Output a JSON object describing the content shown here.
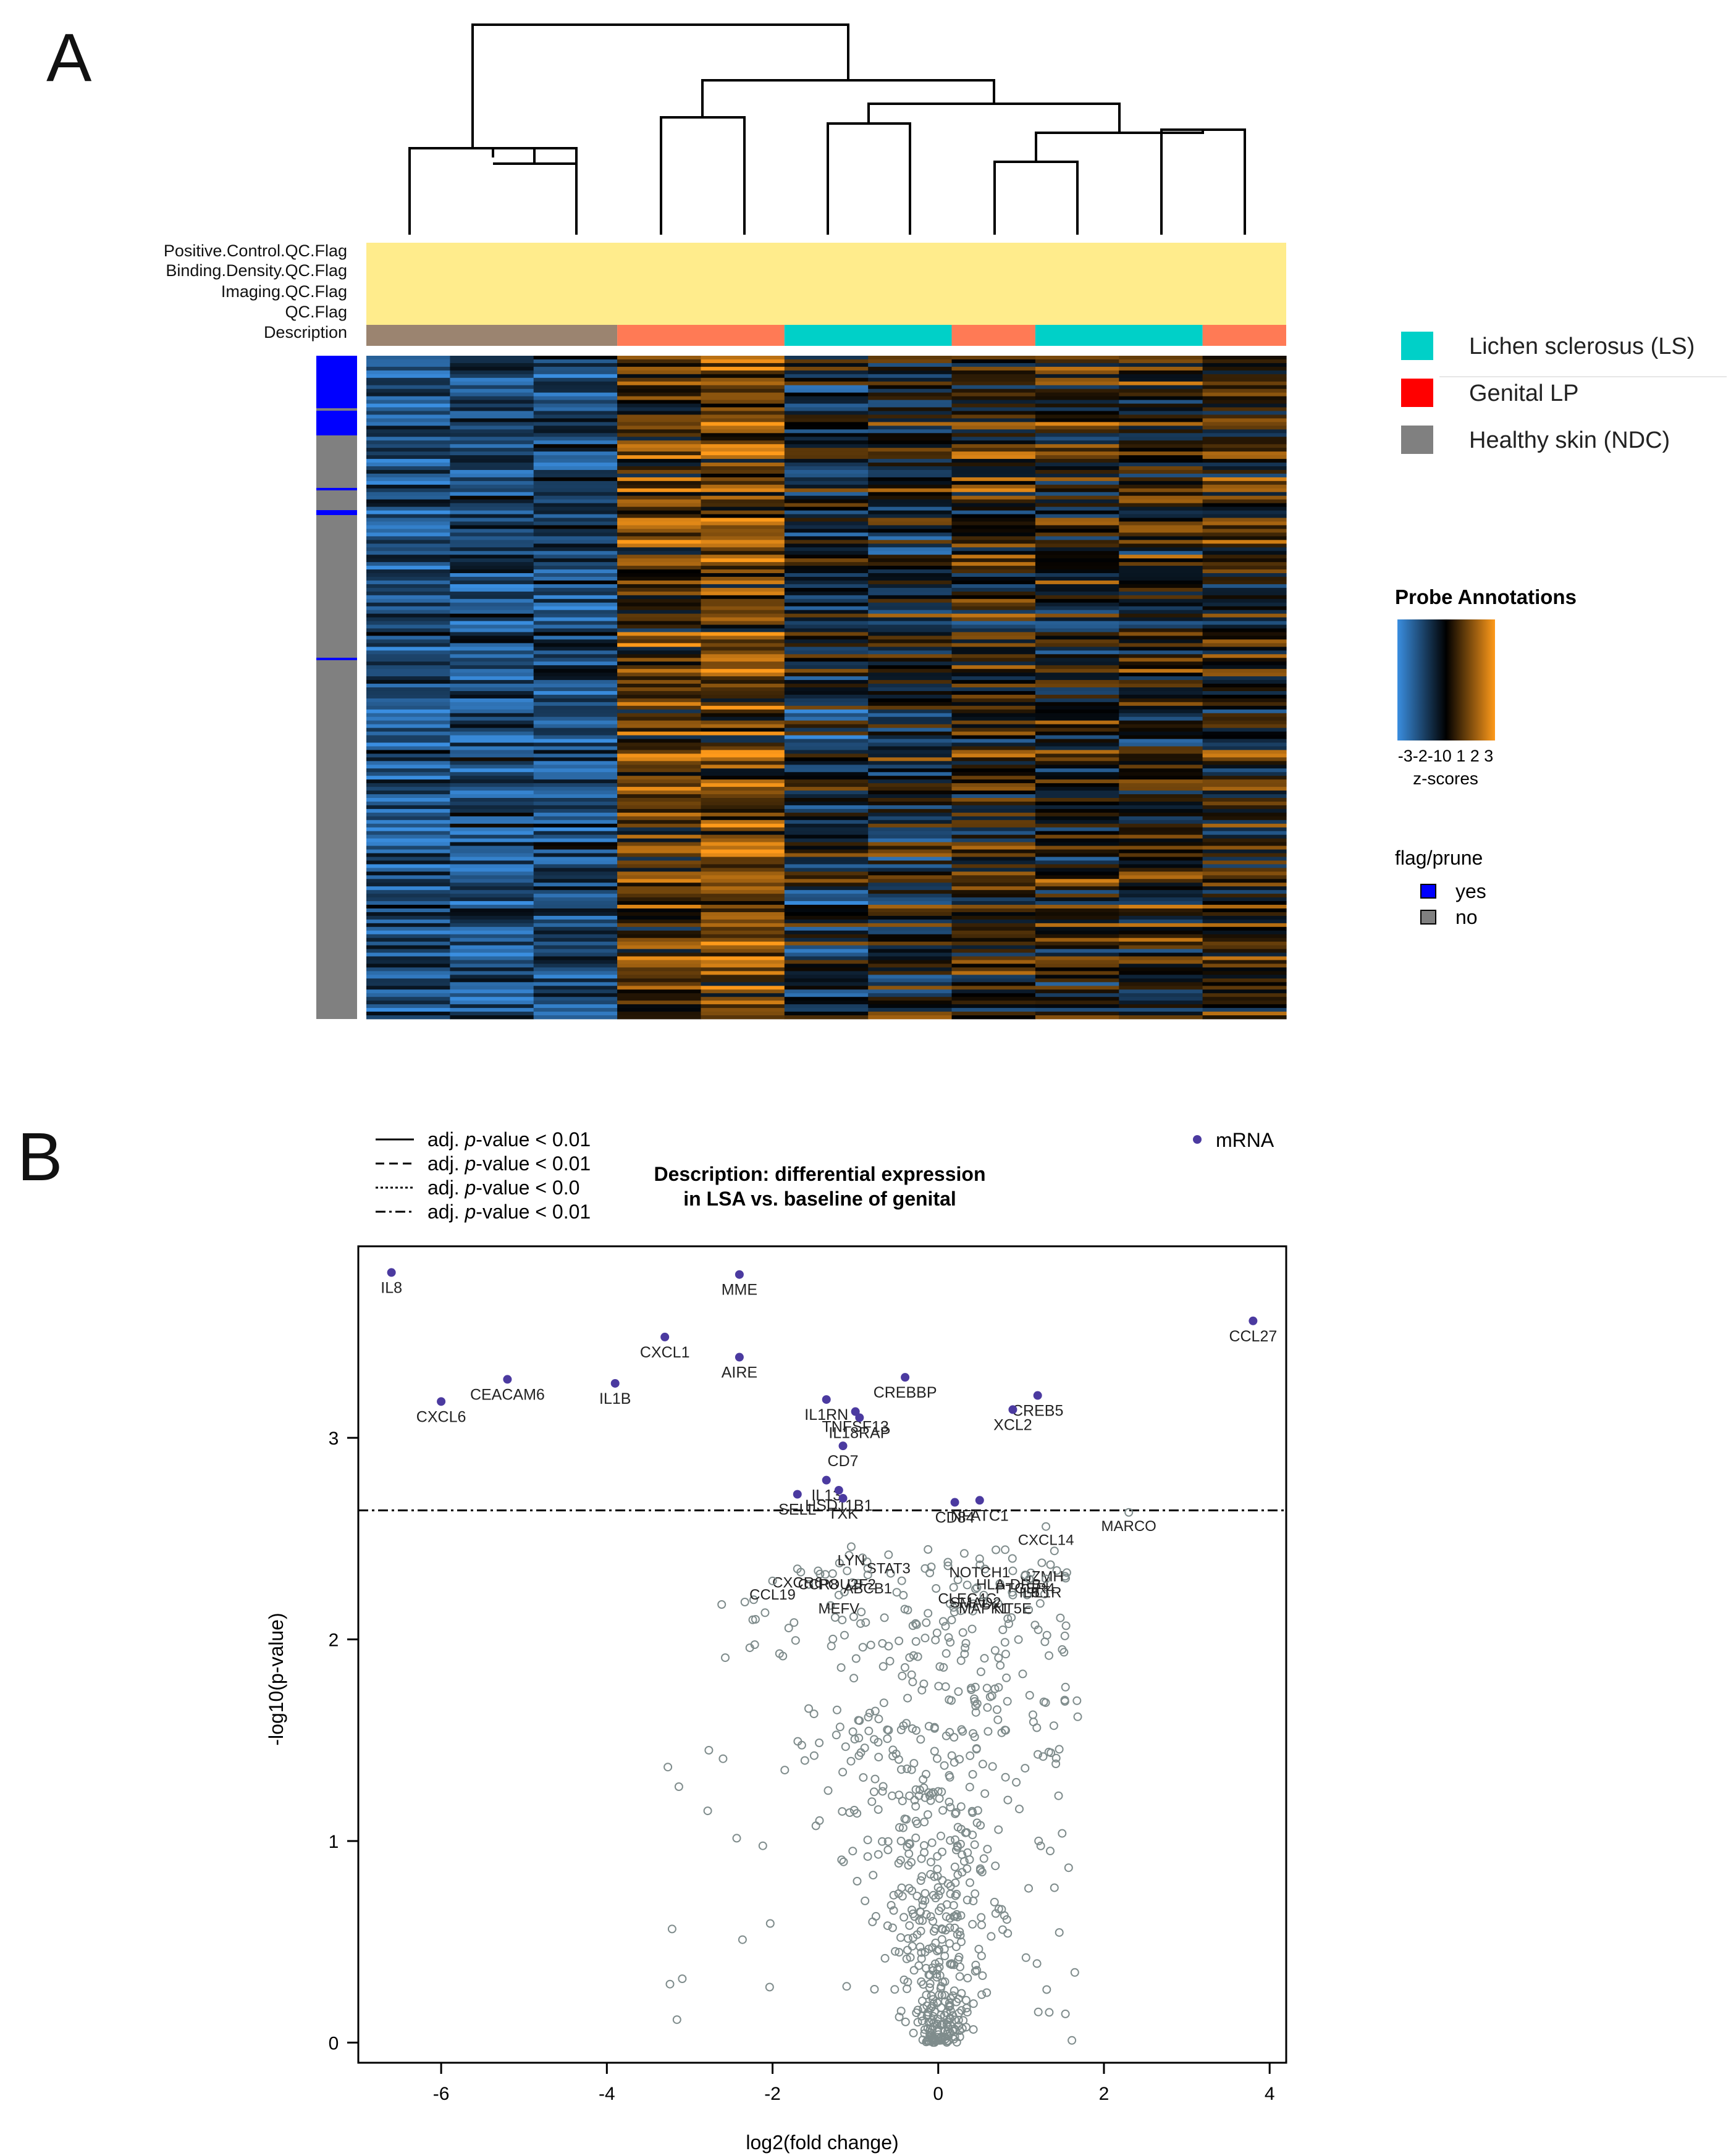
{
  "panel_labels": {
    "a": "A",
    "b": "B"
  },
  "heatmap": {
    "annotation_rows": [
      "Positive.Control.QC.Flag",
      "Binding.Density.QC.Flag",
      "Imaging.QC.Flag",
      "QC.Flag",
      "Description"
    ],
    "description_bands": [
      {
        "group": "ndc",
        "columns": 3
      },
      {
        "group": "lp",
        "columns": 2
      },
      {
        "group": "ls",
        "columns": 2
      },
      {
        "group": "lp",
        "columns": 1
      },
      {
        "group": "ls",
        "columns": 2
      },
      {
        "group": "lp",
        "columns": 1
      }
    ],
    "columns": 11,
    "legend": {
      "groups": [
        {
          "key": "ls",
          "label": "Lichen sclerosus (LS)",
          "color": "#00d0c8"
        },
        {
          "key": "lp",
          "label": "Genital LP",
          "color": "#ff0000"
        },
        {
          "key": "ndc",
          "label": "Healthy skin (NDC)",
          "color": "#808080"
        }
      ],
      "probe_title": "Probe Annotations",
      "scale_ticks": "-3-2-10 1 2 3",
      "scale_label": "z-scores",
      "flag_title": "flag/prune",
      "flag_items": [
        {
          "label": "yes",
          "color": "#0000ff"
        },
        {
          "label": "no",
          "color": "#808080"
        }
      ]
    },
    "colors": {
      "qc_band": "#ffec8c",
      "ndc_band": "#9b8470",
      "lp_band": "#ff7a55",
      "ls_band": "#00d0c8",
      "low": "#3a8ee0",
      "mid": "#000000",
      "high": "#ff9a1a"
    }
  },
  "volcano_legend": {
    "lines": [
      {
        "style": "solid",
        "prefix": "adj. ",
        "pv": "p",
        "suffix": "-value < 0.01"
      },
      {
        "style": "dashed",
        "prefix": "adj. ",
        "pv": "p",
        "suffix": "-value < 0.01"
      },
      {
        "style": "dotted",
        "prefix": "adj. ",
        "pv": "p",
        "suffix": "-value < 0.0"
      },
      {
        "style": "dashdot",
        "prefix": "adj. ",
        "pv": "p",
        "suffix": "-value < 0.01"
      }
    ],
    "point_legend": "mRNA",
    "title_line1": "Description: differential expression",
    "title_line2": "in LSA vs. baseline of genital"
  },
  "chart_data": {
    "type": "scatter",
    "title": "Description: differential expression in LSA vs. baseline of genital",
    "xlabel": "log2(fold change)",
    "ylabel": "-log10(p-value)",
    "xlim": [
      -7,
      4.2
    ],
    "ylim": [
      -0.1,
      3.95
    ],
    "xticks": [
      -6,
      -4,
      -2,
      0,
      2,
      4
    ],
    "yticks": [
      0,
      1,
      2,
      3
    ],
    "threshold_y": 2.64,
    "threshold_style": "dashdot",
    "significant_color": "#4b3aa0",
    "background_color": "#7f8c8c",
    "significant": [
      {
        "label": "IL8",
        "x": -6.6,
        "y": 3.82
      },
      {
        "label": "MME",
        "x": -2.4,
        "y": 3.81
      },
      {
        "label": "CCL27",
        "x": 3.8,
        "y": 3.58
      },
      {
        "label": "CXCL1",
        "x": -3.3,
        "y": 3.5
      },
      {
        "label": "AIRE",
        "x": -2.4,
        "y": 3.4
      },
      {
        "label": "CEACAM6",
        "x": -5.2,
        "y": 3.29
      },
      {
        "label": "IL1B",
        "x": -3.9,
        "y": 3.27
      },
      {
        "label": "CREBBP",
        "x": -0.4,
        "y": 3.3
      },
      {
        "label": "CXCL6",
        "x": -6.0,
        "y": 3.18
      },
      {
        "label": "CREB5",
        "x": 1.2,
        "y": 3.21
      },
      {
        "label": "XCL2",
        "x": 0.9,
        "y": 3.14
      },
      {
        "label": "IL1RN",
        "x": -1.35,
        "y": 3.19
      },
      {
        "label": "TNFSF13",
        "x": -1.0,
        "y": 3.13
      },
      {
        "label": "IL18RAP",
        "x": -0.95,
        "y": 3.1
      },
      {
        "label": "CD7",
        "x": -1.15,
        "y": 2.96
      },
      {
        "label": "IL13",
        "x": -1.35,
        "y": 2.79
      },
      {
        "label": "HSD11B1",
        "x": -1.2,
        "y": 2.74
      },
      {
        "label": "SELL",
        "x": -1.7,
        "y": 2.72
      },
      {
        "label": "TXK",
        "x": -1.15,
        "y": 2.7
      },
      {
        "label": "CD84",
        "x": 0.2,
        "y": 2.68
      },
      {
        "label": "NFATC1",
        "x": 0.5,
        "y": 2.69
      }
    ],
    "labeled_background": [
      {
        "label": "MARCO",
        "x": 2.3,
        "y": 2.63
      },
      {
        "label": "CXCL14",
        "x": 1.3,
        "y": 2.56
      },
      {
        "label": "LYN",
        "x": -1.05,
        "y": 2.46
      },
      {
        "label": "STAT3",
        "x": -0.6,
        "y": 2.42
      },
      {
        "label": "NOTCH1",
        "x": 0.5,
        "y": 2.4
      },
      {
        "label": "GZMH",
        "x": 1.25,
        "y": 2.38
      },
      {
        "label": "CXCR6",
        "x": -1.7,
        "y": 2.35
      },
      {
        "label": "CCR8",
        "x": -1.45,
        "y": 2.34
      },
      {
        "label": "POU2F2",
        "x": -1.1,
        "y": 2.34
      },
      {
        "label": "HLA-DRB4",
        "x": 0.9,
        "y": 2.34
      },
      {
        "label": "PTGER4",
        "x": 1.05,
        "y": 2.32
      },
      {
        "label": "IL5",
        "x": 1.1,
        "y": 2.3
      },
      {
        "label": "ABCB1",
        "x": -0.85,
        "y": 2.32
      },
      {
        "label": "CCL19",
        "x": -2.0,
        "y": 2.29
      },
      {
        "label": "MEFV",
        "x": -1.2,
        "y": 2.22
      },
      {
        "label": "CLEC4C",
        "x": 0.35,
        "y": 2.27
      },
      {
        "label": "SMAD2",
        "x": 0.45,
        "y": 2.25
      },
      {
        "label": "MAPK1",
        "x": 0.55,
        "y": 2.22
      },
      {
        "label": "NT5E",
        "x": 0.9,
        "y": 2.22
      },
      {
        "label": "IL1R",
        "x": 1.3,
        "y": 2.3
      }
    ],
    "tick_font_px": 26,
    "label_font_px": 22
  }
}
